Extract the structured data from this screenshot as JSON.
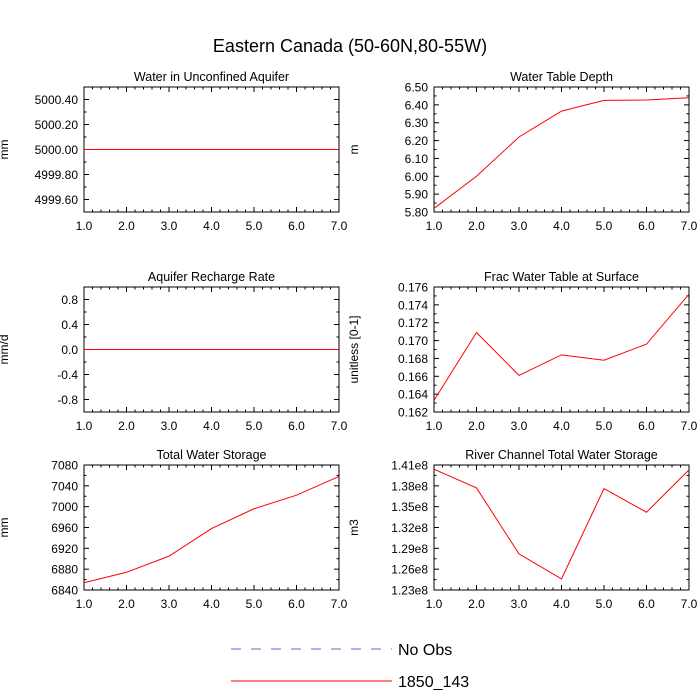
{
  "title": "Eastern Canada (50-60N,80-55W)",
  "colors": {
    "model": "#ff0000",
    "obs": "#6666cc",
    "axis": "#000000"
  },
  "legend": {
    "placement": "bottom-center",
    "entries": [
      {
        "label": "No Obs",
        "style": "dashed",
        "color": "#6666cc"
      },
      {
        "label": "1850_143",
        "style": "solid",
        "color": "#ff0000"
      }
    ]
  },
  "chart_data": [
    {
      "type": "line",
      "title": "Water in Unconfined Aquifer",
      "xlabel": "",
      "ylabel": "mm",
      "x": [
        1,
        2,
        3,
        4,
        5,
        6,
        7
      ],
      "xlim": [
        1,
        7
      ],
      "xticks": [
        "1.0",
        "2.0",
        "3.0",
        "4.0",
        "5.0",
        "6.0",
        "7.0"
      ],
      "ylim": [
        4999.5,
        5000.5
      ],
      "yticks": [
        4999.6,
        4999.8,
        5000.0,
        5000.2,
        5000.4
      ],
      "ytick_labels": [
        "4999.60",
        "4999.80",
        "5000.00",
        "5000.20",
        "5000.40"
      ],
      "series": [
        {
          "name": "1850_143",
          "values": [
            5000,
            5000,
            5000,
            5000,
            5000,
            5000,
            5000
          ]
        }
      ]
    },
    {
      "type": "line",
      "title": "Water Table Depth",
      "xlabel": "",
      "ylabel": "m",
      "x": [
        1,
        2,
        3,
        4,
        5,
        6,
        7
      ],
      "xlim": [
        1,
        7
      ],
      "xticks": [
        "1.0",
        "2.0",
        "3.0",
        "4.0",
        "5.0",
        "6.0",
        "7.0"
      ],
      "ylim": [
        5.8,
        6.5
      ],
      "yticks": [
        5.8,
        5.9,
        6.0,
        6.1,
        6.2,
        6.3,
        6.4,
        6.5
      ],
      "ytick_labels": [
        "5.80",
        "5.90",
        "6.00",
        "6.10",
        "6.20",
        "6.30",
        "6.40",
        "6.50"
      ],
      "series": [
        {
          "name": "1850_143",
          "values": [
            5.82,
            6.0,
            6.22,
            6.365,
            6.425,
            6.427,
            6.44
          ]
        }
      ]
    },
    {
      "type": "line",
      "title": "Aquifer Recharge Rate",
      "xlabel": "",
      "ylabel": "mm/d",
      "x": [
        1,
        2,
        3,
        4,
        5,
        6,
        7
      ],
      "xlim": [
        1,
        7
      ],
      "xticks": [
        "1.0",
        "2.0",
        "3.0",
        "4.0",
        "5.0",
        "6.0",
        "7.0"
      ],
      "ylim": [
        -1.0,
        1.0
      ],
      "yticks": [
        -0.8,
        -0.4,
        0.0,
        0.4,
        0.8
      ],
      "ytick_labels": [
        "-0.8",
        "-0.4",
        "0.0",
        "0.4",
        "0.8"
      ],
      "series": [
        {
          "name": "1850_143",
          "values": [
            0,
            0,
            0,
            0,
            0,
            0,
            0
          ]
        }
      ]
    },
    {
      "type": "line",
      "title": "Frac Water Table at Surface",
      "xlabel": "",
      "ylabel": "unitless [0-1]",
      "x": [
        1,
        2,
        3,
        4,
        5,
        6,
        7
      ],
      "xlim": [
        1,
        7
      ],
      "xticks": [
        "1.0",
        "2.0",
        "3.0",
        "4.0",
        "5.0",
        "6.0",
        "7.0"
      ],
      "ylim": [
        0.162,
        0.176
      ],
      "yticks": [
        0.162,
        0.164,
        0.166,
        0.168,
        0.17,
        0.172,
        0.174,
        0.176
      ],
      "ytick_labels": [
        "0.162",
        "0.164",
        "0.166",
        "0.168",
        "0.170",
        "0.172",
        "0.174",
        "0.176"
      ],
      "series": [
        {
          "name": "1850_143",
          "values": [
            0.1633,
            0.1709,
            0.1661,
            0.1684,
            0.1678,
            0.1696,
            0.1752
          ]
        }
      ]
    },
    {
      "type": "line",
      "title": "Total Water Storage",
      "xlabel": "",
      "ylabel": "mm",
      "x": [
        1,
        2,
        3,
        4,
        5,
        6,
        7
      ],
      "xlim": [
        1,
        7
      ],
      "xticks": [
        "1.0",
        "2.0",
        "3.0",
        "4.0",
        "5.0",
        "6.0",
        "7.0"
      ],
      "ylim": [
        6840,
        7080
      ],
      "yticks": [
        6840,
        6880,
        6920,
        6960,
        7000,
        7040,
        7080
      ],
      "ytick_labels": [
        "6840",
        "6880",
        "6920",
        "6960",
        "7000",
        "7040",
        "7080"
      ],
      "series": [
        {
          "name": "1850_143",
          "values": [
            6854,
            6874,
            6905,
            6958,
            6996,
            7022,
            7058
          ]
        }
      ]
    },
    {
      "type": "line",
      "title": "River Channel Total Water Storage",
      "xlabel": "",
      "ylabel": "m3",
      "x": [
        1,
        2,
        3,
        4,
        5,
        6,
        7
      ],
      "xlim": [
        1,
        7
      ],
      "xticks": [
        "1.0",
        "2.0",
        "3.0",
        "4.0",
        "5.0",
        "6.0",
        "7.0"
      ],
      "ylim": [
        123000000,
        141000000
      ],
      "yticks": [
        123000000,
        126000000,
        129000000,
        132000000,
        135000000,
        138000000,
        141000000
      ],
      "ytick_labels": [
        "1.23e8",
        "1.26e8",
        "1.29e8",
        "1.32e8",
        "1.35e8",
        "1.38e8",
        "1.41e8"
      ],
      "series": [
        {
          "name": "1850_143",
          "values": [
            140400000,
            137700000,
            128200000,
            124600000,
            137600000,
            134200000,
            140300000
          ]
        }
      ]
    }
  ]
}
